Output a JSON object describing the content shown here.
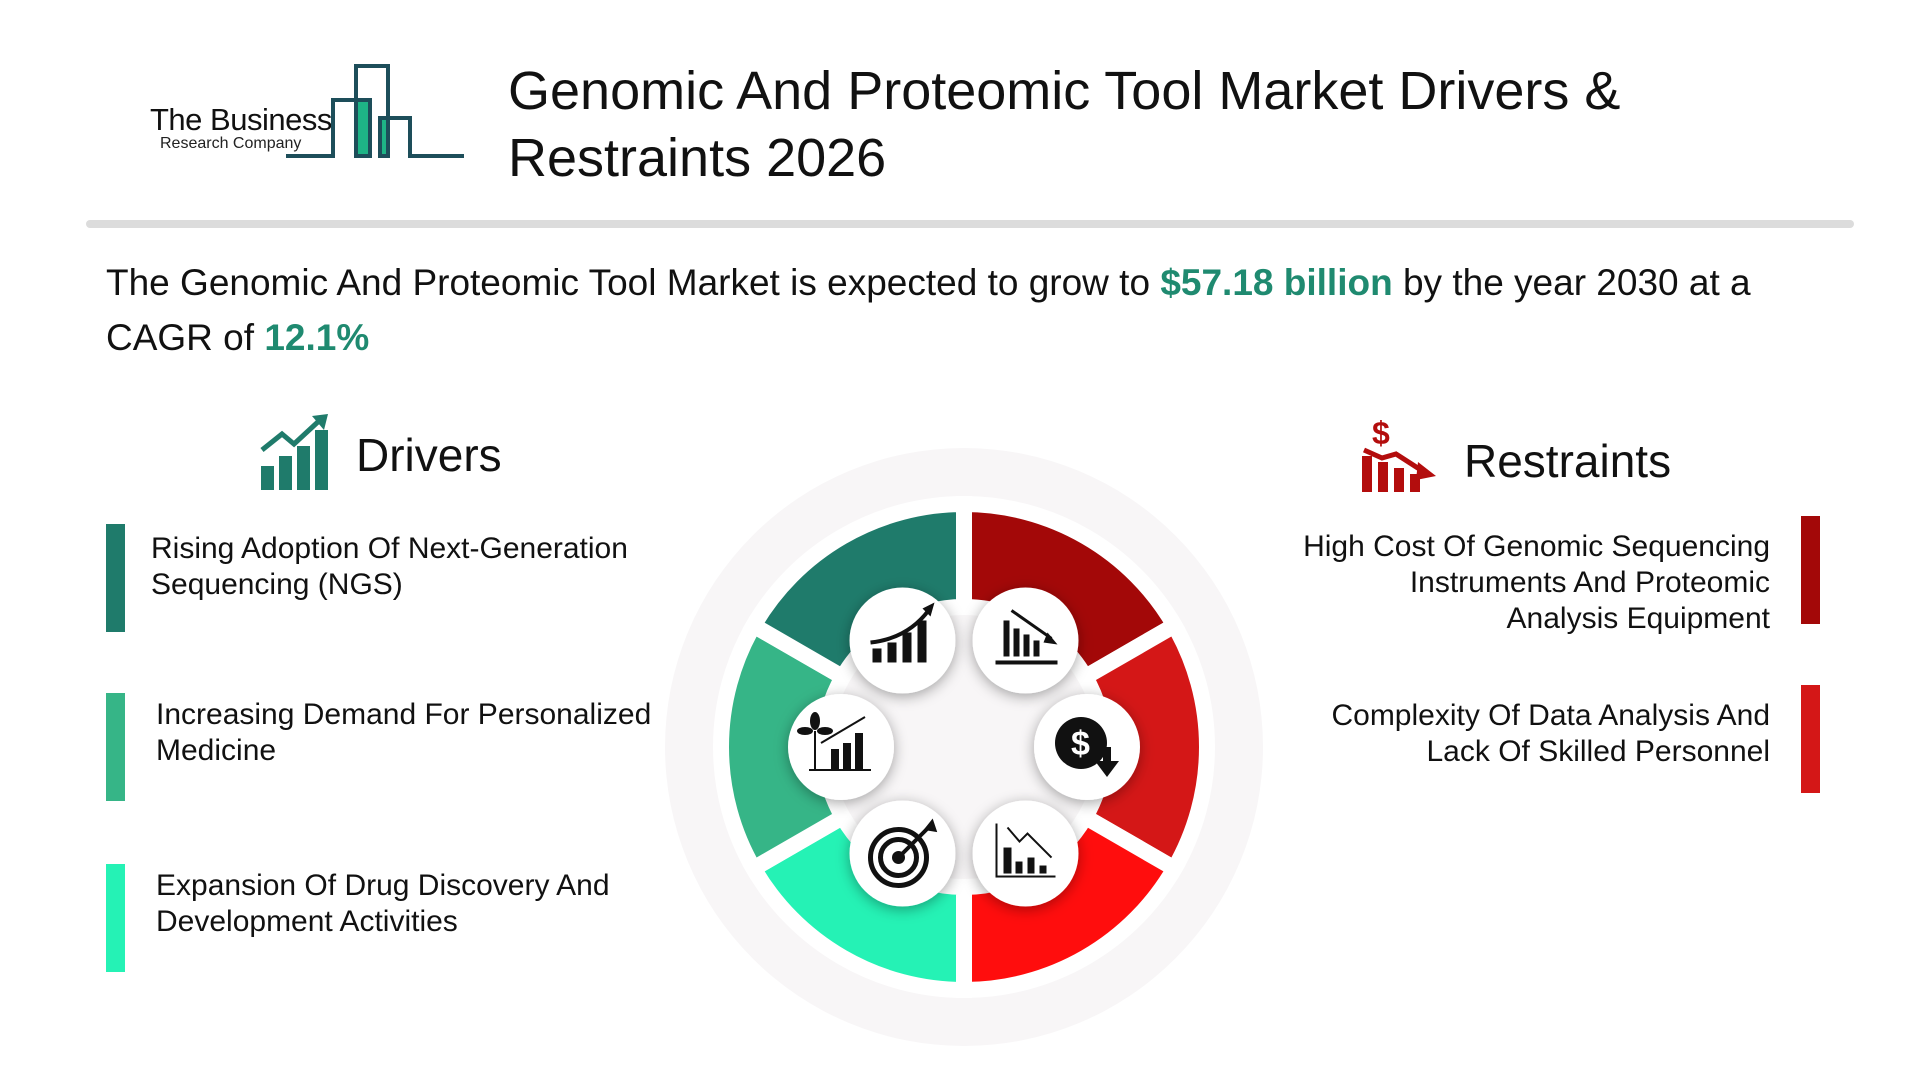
{
  "logo": {
    "main": "The Business",
    "sub": "Research Company"
  },
  "title_line1": "Genomic And Proteomic Tool Market Drivers &",
  "title_line2": "Restraints 2026",
  "subtitle": {
    "part1": "The Genomic And Proteomic Tool Market is expected to grow to ",
    "value": "$57.18 billion",
    "part2": " by the year 2030 at a",
    "part3": "CAGR of ",
    "cagr": "12.1%"
  },
  "drivers": {
    "heading": "Drivers",
    "icon": "bar-chart-growth-icon",
    "items": [
      {
        "line1": "Rising Adoption Of Next-Generation",
        "line2": "Sequencing (NGS)",
        "color": "#1f7b6b"
      },
      {
        "line1": "Increasing Demand For Personalized",
        "line2": "Medicine",
        "color": "#36b587"
      },
      {
        "line1": "Expansion Of Drug Discovery And",
        "line2": "Development Activities",
        "color": "#25f2b5"
      }
    ]
  },
  "restraints": {
    "heading": "Restraints",
    "icon": "dollar-decline-chart-icon",
    "items": [
      {
        "line1": "High Cost Of Genomic Sequencing",
        "line2": "Instruments And Proteomic",
        "line3": "Analysis Equipment",
        "color": "#a30808"
      },
      {
        "line1": "Complexity Of Data Analysis And",
        "line2": "Lack Of Skilled Personnel",
        "color": "#d41717"
      }
    ]
  },
  "wheel": {
    "segment_colors": [
      "#a30808",
      "#d41717",
      "#ff0d0d",
      "#25f2b5",
      "#36b587",
      "#1f7b6b"
    ],
    "icons": [
      "growth-chart-icon",
      "declining-bars-icon",
      "plant-growth-chart-icon",
      "dollar-down-icon",
      "target-icon",
      "declining-line-chart-icon"
    ]
  },
  "colors": {
    "accent": "#1f8a70",
    "logo_dark": "#1d4e5a",
    "logo_green": "#1eb486"
  }
}
